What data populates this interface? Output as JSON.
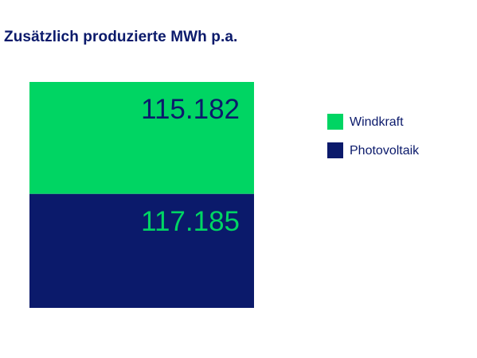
{
  "chart_data": {
    "type": "bar",
    "stacked": true,
    "title": "Zusätzlich produzierte MWh p.a.",
    "categories": [
      ""
    ],
    "series": [
      {
        "name": "Windkraft",
        "values": [
          115182
        ],
        "label": "115.182",
        "color": "#00d563",
        "label_color": "#0b1a6b"
      },
      {
        "name": "Photovoltaik",
        "values": [
          117185
        ],
        "label": "117.185",
        "color": "#0b1a6b",
        "label_color": "#00d563"
      }
    ],
    "legend_position": "right",
    "grid": false,
    "axes_visible": false
  }
}
